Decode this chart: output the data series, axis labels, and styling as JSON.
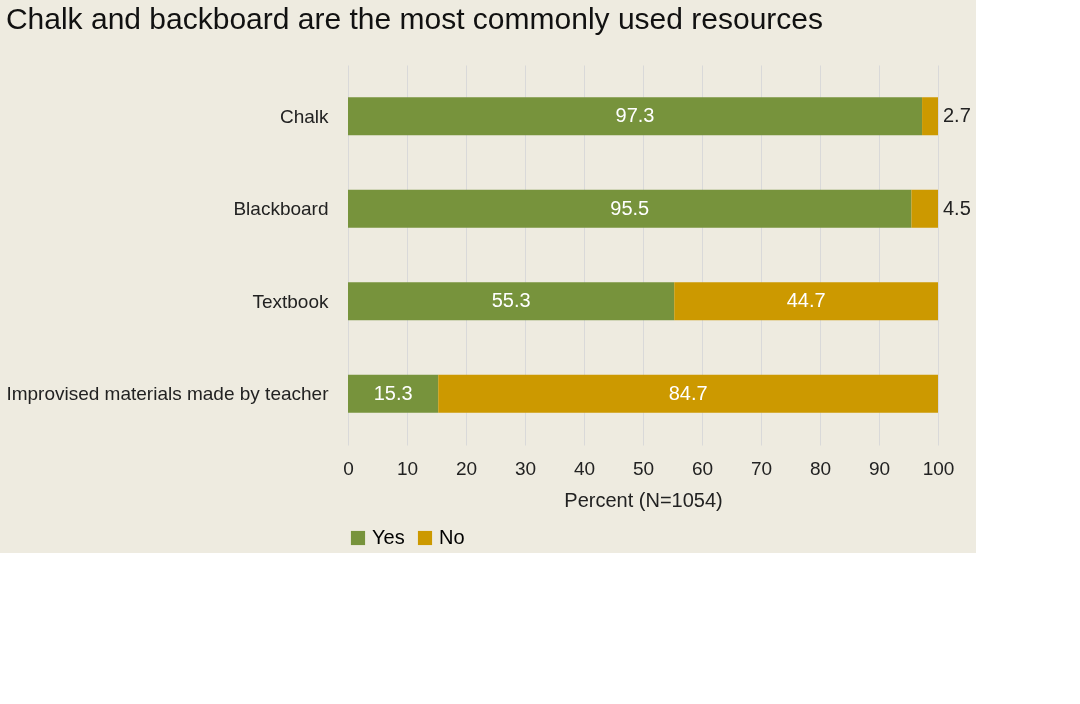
{
  "chart_data": {
    "type": "bar",
    "orientation": "horizontal",
    "stacked": true,
    "title": "Chalk and backboard are the most commonly used resources",
    "xlabel": "Percent (N=1054)",
    "categories": [
      "Chalk",
      "Blackboard",
      "Textbook",
      "Improvised materials made by teacher"
    ],
    "series": [
      {
        "name": "Yes",
        "color": "#77933c",
        "values": [
          97.3,
          95.5,
          55.3,
          15.3
        ]
      },
      {
        "name": "No",
        "color": "#cc9900",
        "values": [
          2.7,
          4.5,
          44.7,
          84.7
        ]
      }
    ],
    "xlim": [
      0,
      100
    ],
    "xticks": [
      0,
      10,
      20,
      30,
      40,
      50,
      60,
      70,
      80,
      90,
      100
    ],
    "grid": "x",
    "legend": "bottom",
    "data_labels": true
  }
}
